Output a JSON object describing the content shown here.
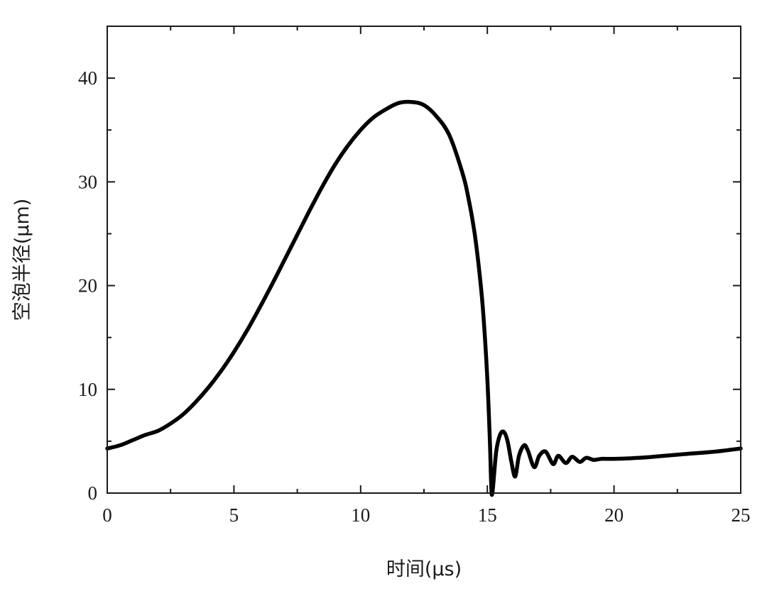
{
  "chart_data": {
    "type": "line",
    "title": "",
    "xlabel": "时间(μs)",
    "ylabel": "空泡半径(μm)",
    "xlim": [
      0,
      25
    ],
    "ylim": [
      0,
      45
    ],
    "grid": false,
    "xticks": [
      0,
      5,
      10,
      15,
      20,
      25
    ],
    "yticks": [
      0,
      10,
      20,
      30,
      40
    ],
    "series": [
      {
        "color": "#000000",
        "x": [
          0,
          0.5,
          1,
          1.5,
          2,
          2.5,
          3,
          3.5,
          4,
          4.5,
          5,
          5.5,
          6,
          6.5,
          7,
          7.5,
          8,
          8.5,
          9,
          9.5,
          10,
          10.5,
          11,
          11.5,
          12,
          12.5,
          13,
          13.5,
          14,
          14.25,
          14.5,
          14.7,
          14.85,
          15.0,
          15.1,
          15.15,
          15.2,
          15.35,
          15.5,
          15.65,
          15.8,
          15.95,
          16.1,
          16.25,
          16.45,
          16.6,
          16.85,
          17.05,
          17.3,
          17.6,
          17.8,
          18.1,
          18.35,
          18.65,
          18.9,
          19.2,
          19.5,
          20,
          21,
          22,
          23,
          24,
          25
        ],
        "y": [
          4.3,
          4.6,
          5.1,
          5.6,
          6.0,
          6.7,
          7.6,
          8.8,
          10.2,
          11.8,
          13.6,
          15.6,
          17.8,
          20.1,
          22.5,
          24.9,
          27.3,
          29.6,
          31.7,
          33.5,
          35.0,
          36.2,
          37.0,
          37.6,
          37.7,
          37.4,
          36.3,
          34.5,
          31.0,
          28.5,
          25.0,
          21.0,
          17.0,
          11.0,
          5.0,
          1.0,
          0.0,
          4.0,
          5.6,
          5.9,
          5.0,
          3.0,
          1.6,
          3.6,
          4.6,
          4.1,
          2.5,
          3.6,
          4.0,
          2.8,
          3.6,
          2.9,
          3.5,
          3.0,
          3.4,
          3.2,
          3.3,
          3.3,
          3.4,
          3.6,
          3.8,
          4.0,
          4.3
        ]
      }
    ]
  }
}
